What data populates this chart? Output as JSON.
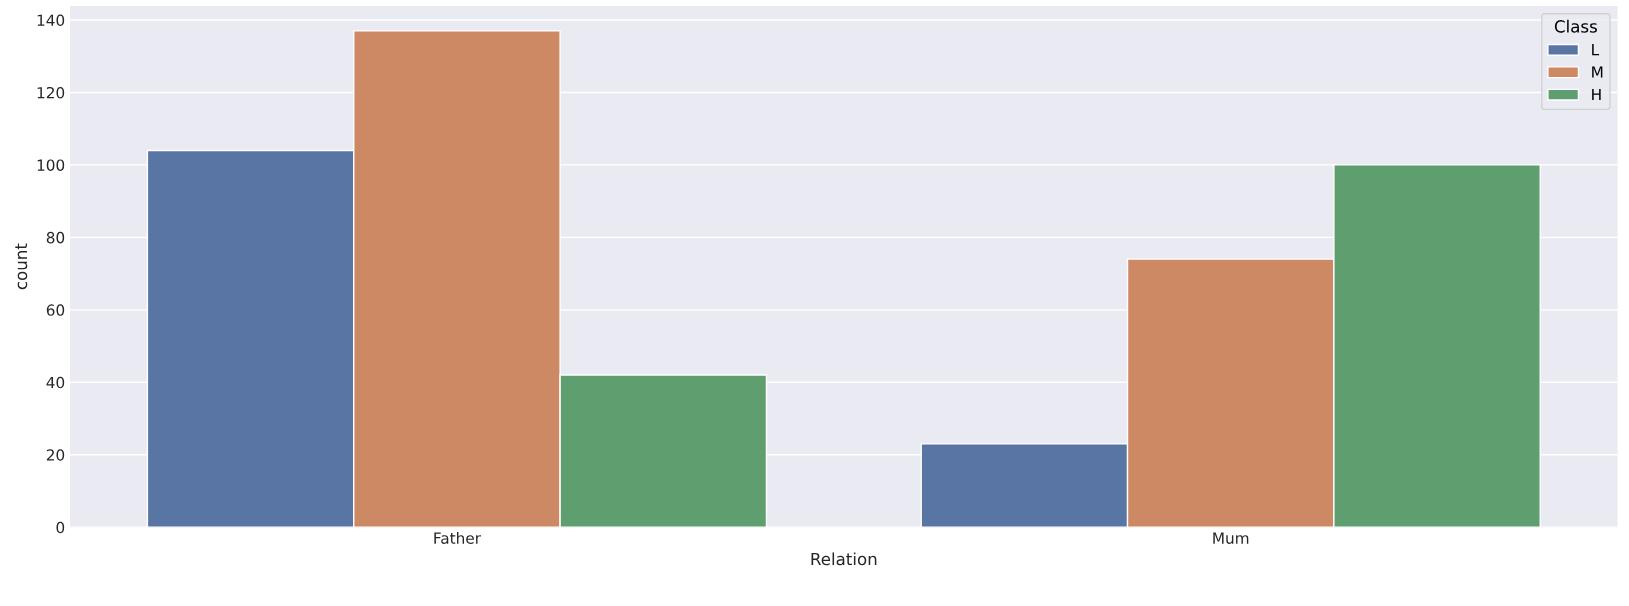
{
  "chart_data": {
    "type": "bar",
    "xlabel": "Relation",
    "ylabel": "count",
    "legend_title": "Class",
    "categories": [
      "Father",
      "Mum"
    ],
    "series": [
      {
        "name": "L",
        "color": "#5975a4",
        "values": [
          104,
          23
        ]
      },
      {
        "name": "M",
        "color": "#cc8963",
        "values": [
          137,
          74
        ]
      },
      {
        "name": "H",
        "color": "#5f9e6e",
        "values": [
          42,
          100
        ]
      }
    ],
    "ylim": [
      0,
      143.85
    ],
    "yticks": [
      0,
      20,
      40,
      60,
      80,
      100,
      120,
      140
    ],
    "grid": "y",
    "legend": "top right"
  }
}
